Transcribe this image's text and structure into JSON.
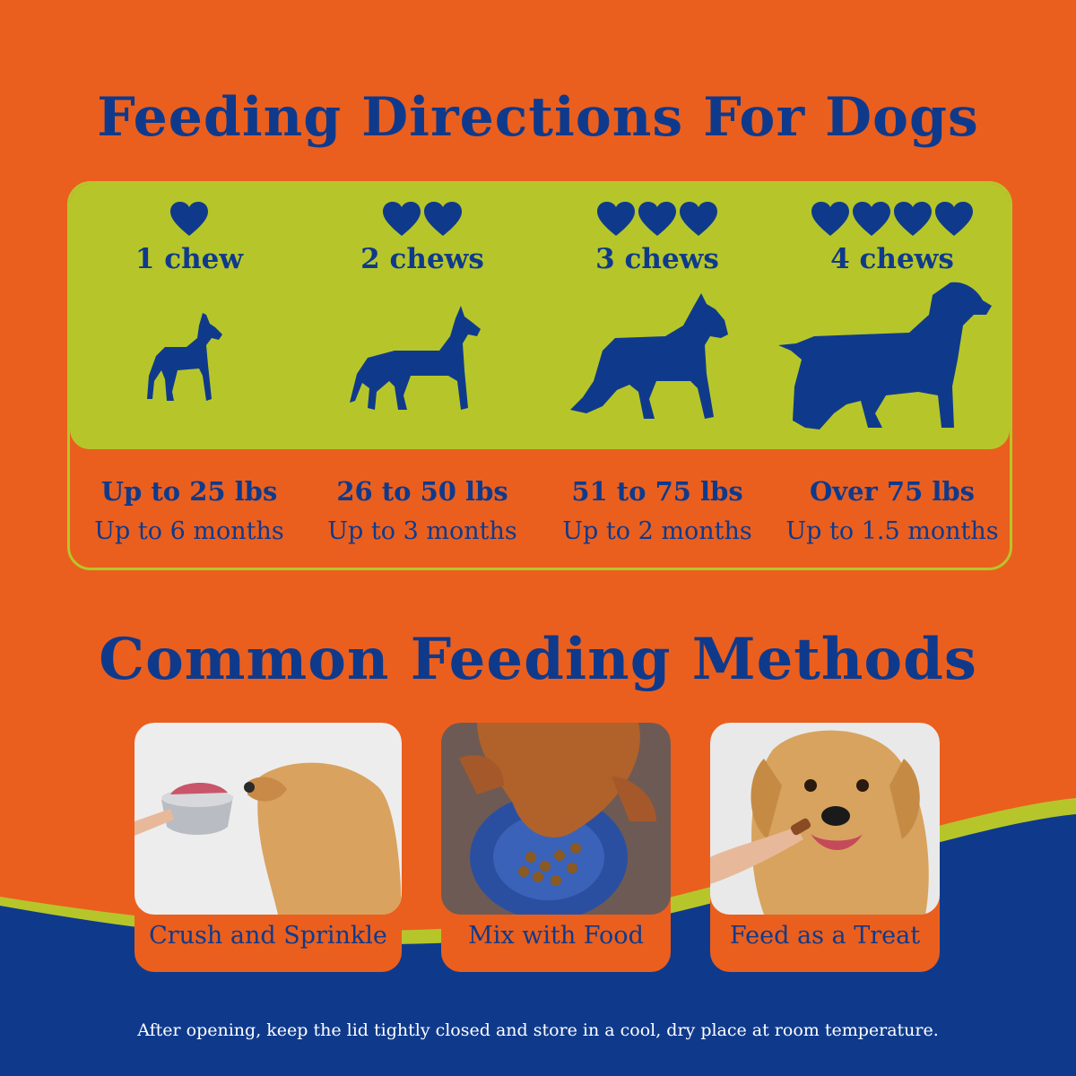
{
  "colors": {
    "background": "#EA5F1E",
    "navy": "#0F3A8C",
    "lime": "#B6C62A",
    "white": "#FFFFFF"
  },
  "title": "Feeding Directions For Dogs",
  "directions": [
    {
      "hearts": 1,
      "chews": "1 chew",
      "weight": "Up to 25 lbs",
      "duration": "Up to 6 months",
      "icon": "small-dog-silhouette-icon"
    },
    {
      "hearts": 2,
      "chews": "2 chews",
      "weight": "26 to 50 lbs",
      "duration": "Up to 3 months",
      "icon": "medium-dog-silhouette-icon"
    },
    {
      "hearts": 3,
      "chews": "3 chews",
      "weight": "51 to 75 lbs",
      "duration": "Up to 2 months",
      "icon": "schnauzer-silhouette-icon"
    },
    {
      "hearts": 4,
      "chews": "4 chews",
      "weight": "Over 75 lbs",
      "duration": "Up to 1.5 months",
      "icon": "spaniel-silhouette-icon"
    }
  ],
  "methods_title": "Common Feeding Methods",
  "methods": [
    {
      "label": "Crush and Sprinkle",
      "icon": "dog-sniffing-bowl-photo"
    },
    {
      "label": "Mix with Food",
      "icon": "dog-eating-kibble-photo"
    },
    {
      "label": "Feed as a Treat",
      "icon": "dog-taking-treat-photo"
    }
  ],
  "footer": "After opening, keep the lid tightly closed and store in a cool, dry place at room temperature."
}
